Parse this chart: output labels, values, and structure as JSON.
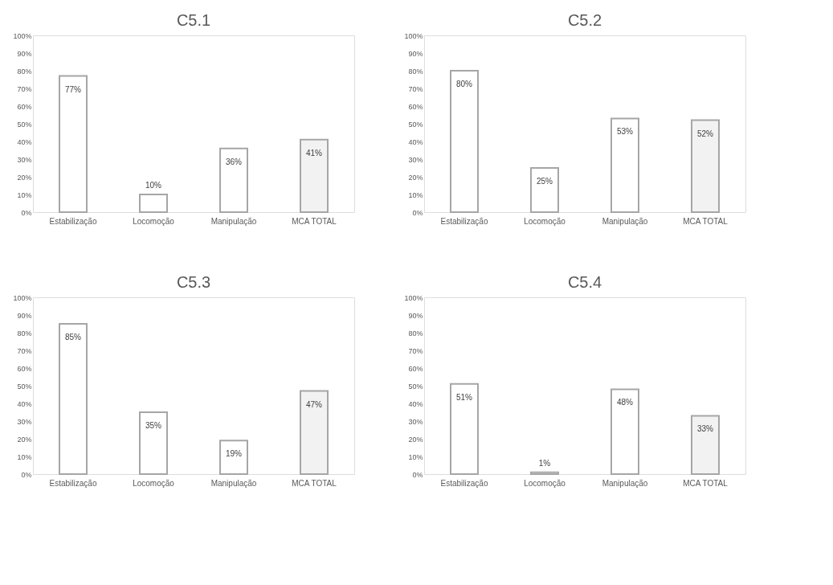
{
  "chart_data": [
    {
      "type": "bar",
      "title": "C5.1",
      "categories": [
        "Estabilização",
        "Locomoção",
        "Manipulação",
        "MCA TOTAL"
      ],
      "values": [
        77,
        10,
        36,
        41
      ],
      "colors": [
        "#ffffff",
        "#ffffff",
        "#ffffff",
        "#f2f2f2"
      ],
      "value_labels": [
        "77%",
        "10%",
        "36%",
        "41%"
      ],
      "ylim": [
        0,
        100
      ],
      "yticks": [
        {
          "value": 0,
          "label": "0%"
        },
        {
          "value": 10,
          "label": "10%"
        },
        {
          "value": 20,
          "label": "20%"
        },
        {
          "value": 30,
          "label": "30%"
        },
        {
          "value": 40,
          "label": "40%"
        },
        {
          "value": 50,
          "label": "50%"
        },
        {
          "value": 60,
          "label": "60%"
        },
        {
          "value": 70,
          "label": "70%"
        },
        {
          "value": 80,
          "label": "80%"
        },
        {
          "value": 90,
          "label": "90%"
        },
        {
          "value": 100,
          "label": "100%"
        }
      ]
    },
    {
      "type": "bar",
      "title": "C5.2",
      "categories": [
        "Estabilização",
        "Locomoção",
        "Manipulação",
        "MCA TOTAL"
      ],
      "values": [
        80,
        25,
        53,
        52
      ],
      "colors": [
        "#ffffff",
        "#ffffff",
        "#ffffff",
        "#f2f2f2"
      ],
      "value_labels": [
        "80%",
        "25%",
        "53%",
        "52%"
      ],
      "ylim": [
        0,
        100
      ],
      "yticks": [
        {
          "value": 0,
          "label": "0%"
        },
        {
          "value": 10,
          "label": "10%"
        },
        {
          "value": 20,
          "label": "20%"
        },
        {
          "value": 30,
          "label": "30%"
        },
        {
          "value": 40,
          "label": "40%"
        },
        {
          "value": 50,
          "label": "50%"
        },
        {
          "value": 60,
          "label": "60%"
        },
        {
          "value": 70,
          "label": "70%"
        },
        {
          "value": 80,
          "label": "80%"
        },
        {
          "value": 90,
          "label": "90%"
        },
        {
          "value": 100,
          "label": "100%"
        }
      ]
    },
    {
      "type": "bar",
      "title": "C5.3",
      "categories": [
        "Estabilização",
        "Locomoção",
        "Manipulação",
        "MCA TOTAL"
      ],
      "values": [
        85,
        35,
        19,
        47
      ],
      "colors": [
        "#ffffff",
        "#ffffff",
        "#ffffff",
        "#f2f2f2"
      ],
      "value_labels": [
        "85%",
        "35%",
        "19%",
        "47%"
      ],
      "ylim": [
        0,
        100
      ],
      "yticks": [
        {
          "value": 0,
          "label": "0%"
        },
        {
          "value": 10,
          "label": "10%"
        },
        {
          "value": 20,
          "label": "20%"
        },
        {
          "value": 30,
          "label": "30%"
        },
        {
          "value": 40,
          "label": "40%"
        },
        {
          "value": 50,
          "label": "50%"
        },
        {
          "value": 60,
          "label": "60%"
        },
        {
          "value": 70,
          "label": "70%"
        },
        {
          "value": 80,
          "label": "80%"
        },
        {
          "value": 90,
          "label": "90%"
        },
        {
          "value": 100,
          "label": "100%"
        }
      ]
    },
    {
      "type": "bar",
      "title": "C5.4",
      "categories": [
        "Estabilização",
        "Locomoção",
        "Manipulação",
        "MCA TOTAL"
      ],
      "values": [
        51,
        1,
        48,
        33
      ],
      "colors": [
        "#ffffff",
        "#ffffff",
        "#ffffff",
        "#f2f2f2"
      ],
      "value_labels": [
        "51%",
        "1%",
        "48%",
        "33%"
      ],
      "ylim": [
        0,
        100
      ],
      "yticks": [
        {
          "value": 0,
          "label": "0%"
        },
        {
          "value": 10,
          "label": "10%"
        },
        {
          "value": 20,
          "label": "20%"
        },
        {
          "value": 30,
          "label": "30%"
        },
        {
          "value": 40,
          "label": "40%"
        },
        {
          "value": 50,
          "label": "50%"
        },
        {
          "value": 60,
          "label": "60%"
        },
        {
          "value": 70,
          "label": "70%"
        },
        {
          "value": 80,
          "label": "80%"
        },
        {
          "value": 90,
          "label": "90%"
        },
        {
          "value": 100,
          "label": "100%"
        }
      ]
    }
  ]
}
